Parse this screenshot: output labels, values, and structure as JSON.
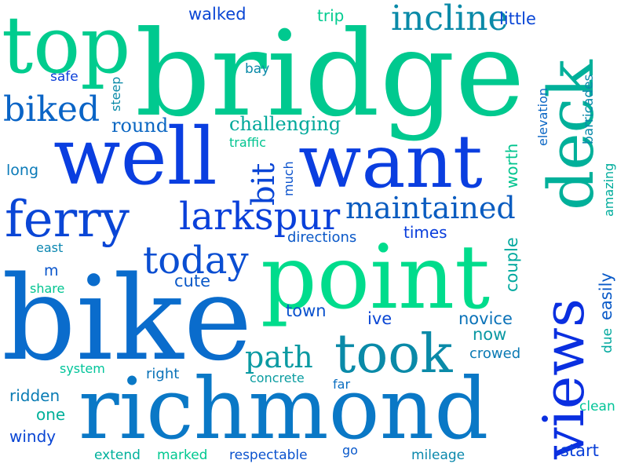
{
  "words": [
    {
      "text": "bridge",
      "color": "#00c98f"
    },
    {
      "text": "bike",
      "color": "#0a6ccc"
    },
    {
      "text": "richmond",
      "color": "#0a78c6"
    },
    {
      "text": "point",
      "color": "#00dc8c"
    },
    {
      "text": "views",
      "color": "#0a2fe0"
    },
    {
      "text": "well",
      "color": "#0a3ee0"
    },
    {
      "text": "want",
      "color": "#0a3ee0"
    },
    {
      "text": "top",
      "color": "#00cc8e"
    },
    {
      "text": "deck",
      "color": "#00b09a"
    },
    {
      "text": "took",
      "color": "#0a8aa8"
    },
    {
      "text": "ferry",
      "color": "#0a46d6"
    },
    {
      "text": "larkspur",
      "color": "#0a40da"
    },
    {
      "text": "maintained",
      "color": "#0a5cc0"
    },
    {
      "text": "today",
      "color": "#0a4ed2"
    },
    {
      "text": "biked",
      "color": "#0a64c6"
    },
    {
      "text": "incline",
      "color": "#0a8aa8"
    },
    {
      "text": "path",
      "color": "#0a9aa2"
    },
    {
      "text": "bit",
      "color": "#0a46d6"
    },
    {
      "text": "challenging",
      "color": "#00a89a"
    },
    {
      "text": "round",
      "color": "#0a66c2"
    },
    {
      "text": "walked",
      "color": "#0a46d4"
    },
    {
      "text": "trip",
      "color": "#00cc90"
    },
    {
      "text": "little",
      "color": "#0a46d6"
    },
    {
      "text": "steep",
      "color": "#0a8aa8"
    },
    {
      "text": "bay",
      "color": "#0a8aa8"
    },
    {
      "text": "safe",
      "color": "#0a3ed8"
    },
    {
      "text": "long",
      "color": "#0a7ab8"
    },
    {
      "text": "traffic",
      "color": "#00c490"
    },
    {
      "text": "much",
      "color": "#0a52cc"
    },
    {
      "text": "worth",
      "color": "#00c48e"
    },
    {
      "text": "directions",
      "color": "#0a58c8"
    },
    {
      "text": "times",
      "color": "#0a3edc"
    },
    {
      "text": "couple",
      "color": "#00a89e"
    },
    {
      "text": "east",
      "color": "#0a86b0"
    },
    {
      "text": "m",
      "color": "#0a56cc"
    },
    {
      "text": "share",
      "color": "#00c490"
    },
    {
      "text": "cute",
      "color": "#0a58c8"
    },
    {
      "text": "town",
      "color": "#0a52ce"
    },
    {
      "text": "ive",
      "color": "#0a46d4"
    },
    {
      "text": "novice",
      "color": "#0a72b8"
    },
    {
      "text": "now",
      "color": "#0a98a2"
    },
    {
      "text": "crowed",
      "color": "#0a7ab4"
    },
    {
      "text": "elevation",
      "color": "#0a66c4"
    },
    {
      "text": "barricades",
      "color": "#0a8aaa"
    },
    {
      "text": "amazing",
      "color": "#00ac9c"
    },
    {
      "text": "easily",
      "color": "#0a5ac8"
    },
    {
      "text": "due",
      "color": "#00a89e"
    },
    {
      "text": "system",
      "color": "#00c49a"
    },
    {
      "text": "right",
      "color": "#0a72b8"
    },
    {
      "text": "concrete",
      "color": "#0a9ca0"
    },
    {
      "text": "far",
      "color": "#0a6ec0"
    },
    {
      "text": "ridden",
      "color": "#0a7cb4"
    },
    {
      "text": "one",
      "color": "#00b09a"
    },
    {
      "text": "windy",
      "color": "#0a46d4"
    },
    {
      "text": "extend",
      "color": "#00b09c"
    },
    {
      "text": "marked",
      "color": "#00c890"
    },
    {
      "text": "respectable",
      "color": "#0a52ce"
    },
    {
      "text": "go",
      "color": "#0a5acc"
    },
    {
      "text": "mileage",
      "color": "#0a88ac"
    },
    {
      "text": "start",
      "color": "#0a40d8"
    },
    {
      "text": "clean",
      "color": "#00c498"
    }
  ]
}
